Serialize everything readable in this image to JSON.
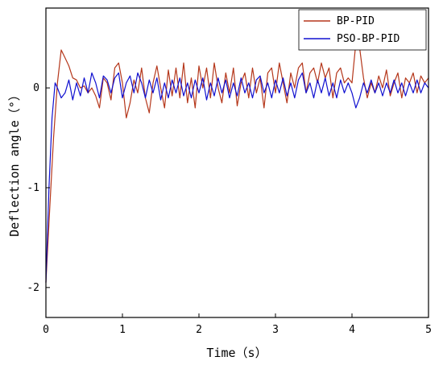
{
  "chart_data": {
    "type": "line",
    "title": "",
    "xlabel": "Time（s）",
    "ylabel": "Deflection angle（°）",
    "xlim": [
      0,
      5
    ],
    "ylim": [
      -2.3,
      0.8
    ],
    "x_ticks": [
      0,
      1,
      2,
      3,
      4,
      5
    ],
    "y_ticks": [
      -2,
      -1,
      0
    ],
    "grid": false,
    "legend_position": "top-right",
    "series": [
      {
        "name": "BP-PID",
        "color": "#b5371b",
        "points": [
          [
            0,
            -1.95
          ],
          [
            0.05,
            -1.2
          ],
          [
            0.1,
            -0.5
          ],
          [
            0.15,
            0.05
          ],
          [
            0.2,
            0.38
          ],
          [
            0.25,
            0.3
          ],
          [
            0.3,
            0.22
          ],
          [
            0.35,
            0.1
          ],
          [
            0.4,
            0.08
          ],
          [
            0.45,
            0.0
          ],
          [
            0.5,
            0.02
          ],
          [
            0.55,
            -0.05
          ],
          [
            0.6,
            0.0
          ],
          [
            0.65,
            -0.08
          ],
          [
            0.7,
            -0.2
          ],
          [
            0.75,
            0.1
          ],
          [
            0.8,
            0.05
          ],
          [
            0.85,
            -0.12
          ],
          [
            0.9,
            0.2
          ],
          [
            0.95,
            0.25
          ],
          [
            1.0,
            0.05
          ],
          [
            1.05,
            -0.3
          ],
          [
            1.1,
            -0.15
          ],
          [
            1.15,
            0.08
          ],
          [
            1.2,
            -0.05
          ],
          [
            1.25,
            0.2
          ],
          [
            1.3,
            -0.1
          ],
          [
            1.35,
            -0.25
          ],
          [
            1.4,
            0.05
          ],
          [
            1.45,
            0.22
          ],
          [
            1.5,
            0.0
          ],
          [
            1.55,
            -0.2
          ],
          [
            1.6,
            0.18
          ],
          [
            1.65,
            -0.08
          ],
          [
            1.7,
            0.2
          ],
          [
            1.75,
            -0.1
          ],
          [
            1.8,
            0.25
          ],
          [
            1.85,
            -0.15
          ],
          [
            1.9,
            0.1
          ],
          [
            1.95,
            -0.2
          ],
          [
            2.0,
            0.22
          ],
          [
            2.05,
            0.0
          ],
          [
            2.1,
            0.2
          ],
          [
            2.15,
            -0.1
          ],
          [
            2.2,
            0.25
          ],
          [
            2.25,
            0.0
          ],
          [
            2.3,
            -0.15
          ],
          [
            2.35,
            0.15
          ],
          [
            2.4,
            -0.05
          ],
          [
            2.45,
            0.2
          ],
          [
            2.5,
            -0.18
          ],
          [
            2.55,
            0.05
          ],
          [
            2.6,
            0.15
          ],
          [
            2.65,
            -0.1
          ],
          [
            2.7,
            0.2
          ],
          [
            2.75,
            -0.05
          ],
          [
            2.8,
            0.1
          ],
          [
            2.85,
            -0.2
          ],
          [
            2.9,
            0.15
          ],
          [
            2.95,
            0.2
          ],
          [
            3.0,
            -0.05
          ],
          [
            3.05,
            0.25
          ],
          [
            3.1,
            0.05
          ],
          [
            3.15,
            -0.15
          ],
          [
            3.2,
            0.15
          ],
          [
            3.25,
            0.0
          ],
          [
            3.3,
            0.2
          ],
          [
            3.35,
            0.25
          ],
          [
            3.4,
            -0.05
          ],
          [
            3.45,
            0.15
          ],
          [
            3.5,
            0.2
          ],
          [
            3.55,
            0.05
          ],
          [
            3.6,
            0.25
          ],
          [
            3.65,
            0.1
          ],
          [
            3.7,
            0.2
          ],
          [
            3.75,
            -0.1
          ],
          [
            3.8,
            0.15
          ],
          [
            3.85,
            0.2
          ],
          [
            3.9,
            0.05
          ],
          [
            3.95,
            0.1
          ],
          [
            4.0,
            0.05
          ],
          [
            4.05,
            0.45
          ],
          [
            4.1,
            0.4
          ],
          [
            4.15,
            0.1
          ],
          [
            4.2,
            -0.1
          ],
          [
            4.25,
            0.05
          ],
          [
            4.3,
            -0.05
          ],
          [
            4.35,
            0.12
          ],
          [
            4.4,
            0.0
          ],
          [
            4.45,
            0.18
          ],
          [
            4.5,
            -0.08
          ],
          [
            4.55,
            0.05
          ],
          [
            4.6,
            0.15
          ],
          [
            4.65,
            -0.1
          ],
          [
            4.7,
            0.1
          ],
          [
            4.75,
            0.05
          ],
          [
            4.8,
            0.15
          ],
          [
            4.85,
            -0.05
          ],
          [
            4.9,
            0.12
          ],
          [
            4.95,
            0.05
          ],
          [
            5.0,
            0.1
          ]
        ]
      },
      {
        "name": "PSO-BP-PID",
        "color": "#1010d0",
        "points": [
          [
            0,
            -1.95
          ],
          [
            0.04,
            -1.0
          ],
          [
            0.08,
            -0.3
          ],
          [
            0.12,
            0.05
          ],
          [
            0.15,
            0.0
          ],
          [
            0.2,
            -0.1
          ],
          [
            0.25,
            -0.05
          ],
          [
            0.3,
            0.08
          ],
          [
            0.35,
            -0.12
          ],
          [
            0.4,
            0.05
          ],
          [
            0.45,
            -0.08
          ],
          [
            0.5,
            0.1
          ],
          [
            0.55,
            -0.05
          ],
          [
            0.6,
            0.15
          ],
          [
            0.65,
            0.05
          ],
          [
            0.7,
            -0.1
          ],
          [
            0.75,
            0.12
          ],
          [
            0.8,
            0.08
          ],
          [
            0.85,
            -0.05
          ],
          [
            0.9,
            0.1
          ],
          [
            0.95,
            0.15
          ],
          [
            1.0,
            -0.1
          ],
          [
            1.05,
            0.05
          ],
          [
            1.1,
            0.12
          ],
          [
            1.15,
            -0.05
          ],
          [
            1.2,
            0.15
          ],
          [
            1.25,
            0.05
          ],
          [
            1.3,
            -0.1
          ],
          [
            1.35,
            0.08
          ],
          [
            1.4,
            -0.05
          ],
          [
            1.45,
            0.1
          ],
          [
            1.5,
            -0.12
          ],
          [
            1.55,
            0.05
          ],
          [
            1.6,
            -0.1
          ],
          [
            1.65,
            0.08
          ],
          [
            1.7,
            -0.05
          ],
          [
            1.75,
            0.1
          ],
          [
            1.8,
            -0.08
          ],
          [
            1.85,
            0.05
          ],
          [
            1.9,
            -0.1
          ],
          [
            1.95,
            0.08
          ],
          [
            2.0,
            -0.05
          ],
          [
            2.05,
            0.1
          ],
          [
            2.1,
            -0.12
          ],
          [
            2.15,
            0.05
          ],
          [
            2.2,
            -0.08
          ],
          [
            2.25,
            0.1
          ],
          [
            2.3,
            -0.05
          ],
          [
            2.35,
            0.08
          ],
          [
            2.4,
            -0.1
          ],
          [
            2.45,
            0.05
          ],
          [
            2.5,
            -0.08
          ],
          [
            2.55,
            0.1
          ],
          [
            2.6,
            -0.05
          ],
          [
            2.65,
            0.05
          ],
          [
            2.7,
            -0.1
          ],
          [
            2.75,
            0.08
          ],
          [
            2.8,
            0.12
          ],
          [
            2.85,
            -0.05
          ],
          [
            2.9,
            0.05
          ],
          [
            2.95,
            -0.1
          ],
          [
            3.0,
            0.08
          ],
          [
            3.05,
            -0.05
          ],
          [
            3.1,
            0.1
          ],
          [
            3.15,
            -0.08
          ],
          [
            3.2,
            0.05
          ],
          [
            3.25,
            -0.1
          ],
          [
            3.3,
            0.08
          ],
          [
            3.35,
            0.15
          ],
          [
            3.4,
            -0.05
          ],
          [
            3.45,
            0.05
          ],
          [
            3.5,
            -0.1
          ],
          [
            3.55,
            0.08
          ],
          [
            3.6,
            -0.05
          ],
          [
            3.65,
            0.1
          ],
          [
            3.7,
            -0.08
          ],
          [
            3.75,
            0.05
          ],
          [
            3.8,
            -0.1
          ],
          [
            3.85,
            0.08
          ],
          [
            3.9,
            -0.05
          ],
          [
            3.95,
            0.05
          ],
          [
            4.0,
            -0.05
          ],
          [
            4.05,
            -0.2
          ],
          [
            4.1,
            -0.1
          ],
          [
            4.15,
            0.05
          ],
          [
            4.2,
            -0.05
          ],
          [
            4.25,
            0.08
          ],
          [
            4.3,
            -0.05
          ],
          [
            4.35,
            0.05
          ],
          [
            4.4,
            -0.08
          ],
          [
            4.45,
            0.05
          ],
          [
            4.5,
            -0.05
          ],
          [
            4.55,
            0.08
          ],
          [
            4.6,
            -0.05
          ],
          [
            4.65,
            0.05
          ],
          [
            4.7,
            -0.08
          ],
          [
            4.75,
            0.05
          ],
          [
            4.8,
            -0.05
          ],
          [
            4.85,
            0.08
          ],
          [
            4.9,
            -0.05
          ],
          [
            4.95,
            0.05
          ],
          [
            5.0,
            0.0
          ]
        ]
      }
    ]
  }
}
